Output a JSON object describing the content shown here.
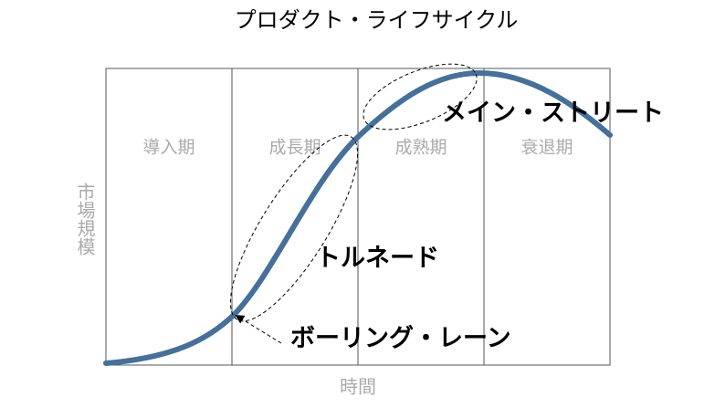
{
  "title": "プロダクト・ライフサイクル",
  "stages": [
    "導入期",
    "成長期",
    "成熟期",
    "衰退期"
  ],
  "y_axis_label": "市場規模",
  "x_axis_label": "時間",
  "annotations": {
    "main_street": "メイン・ストリート",
    "tornado": "トルネード",
    "bowling_alley": "ボーリング・レーン"
  }
}
